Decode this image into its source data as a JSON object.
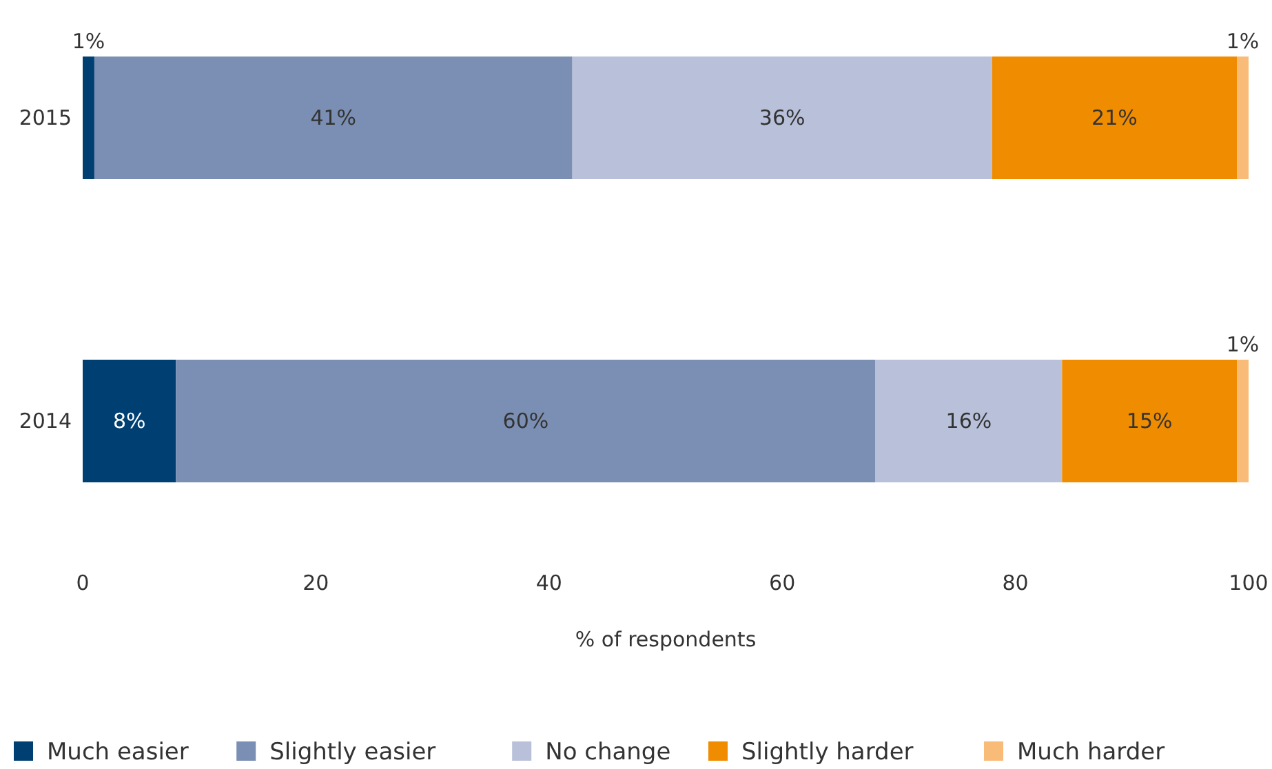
{
  "chart_data": {
    "type": "bar",
    "orientation": "horizontal",
    "stacked": true,
    "categories": [
      "2015",
      "2014"
    ],
    "xlabel": "% of respondents",
    "xlim": [
      0,
      100
    ],
    "xticks": [
      0,
      20,
      40,
      60,
      80,
      100
    ],
    "grid": false,
    "legend": "bottom",
    "series": [
      {
        "name": "Much easier",
        "color": "#003f72",
        "values": [
          1,
          8
        ],
        "value_labels": [
          "1%",
          "8%"
        ]
      },
      {
        "name": "Slightly easier",
        "color": "#7a8fb3",
        "values": [
          41,
          60
        ],
        "value_labels": [
          "41%",
          "60%"
        ]
      },
      {
        "name": "No change",
        "color": "#b9c1da",
        "values": [
          36,
          16
        ],
        "value_labels": [
          "36%",
          "16%"
        ]
      },
      {
        "name": "Slightly harder",
        "color": "#f08c00",
        "values": [
          21,
          15
        ],
        "value_labels": [
          "21%",
          "15%"
        ]
      },
      {
        "name": "Much harder",
        "color": "#f9bb78",
        "values": [
          1,
          1
        ],
        "value_labels": [
          "1%",
          "1%"
        ]
      }
    ]
  }
}
